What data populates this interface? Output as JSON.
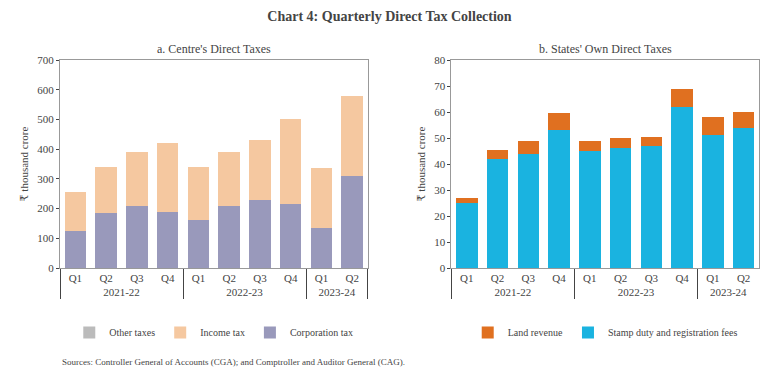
{
  "title": "Chart 4: Quarterly Direct Tax Collection",
  "source": "Sources: Controller General of Accounts (CGA); and Comptroller and Auditor General (CAG).",
  "chart_data": [
    {
      "type": "bar",
      "title": "a. Centre's Direct Taxes",
      "stacked": true,
      "categories": [
        "Q1",
        "Q2",
        "Q3",
        "Q4",
        "Q1",
        "Q2",
        "Q3",
        "Q4",
        "Q1",
        "Q2"
      ],
      "groups": [
        "2021-22",
        "2021-22",
        "2021-22",
        "2021-22",
        "2022-23",
        "2022-23",
        "2022-23",
        "2022-23",
        "2023-24",
        "2023-24"
      ],
      "series": [
        {
          "name": "Corporation tax",
          "color": "#9999bb",
          "values": [
            125,
            185,
            210,
            190,
            160,
            210,
            230,
            215,
            135,
            310
          ]
        },
        {
          "name": "Income tax",
          "color": "#f5c8a0",
          "values": [
            130,
            155,
            180,
            230,
            180,
            180,
            200,
            285,
            200,
            270
          ]
        },
        {
          "name": "Other taxes",
          "color": "#bbbbbb",
          "values": [
            0,
            0,
            0,
            0,
            0,
            0,
            0,
            0,
            0,
            0
          ]
        }
      ],
      "ylabel": "₹ thousand crore",
      "ylim": [
        0,
        700
      ],
      "yticks": [
        0,
        100,
        200,
        300,
        400,
        500,
        600,
        700
      ],
      "grid": false,
      "legend": "bottom"
    },
    {
      "type": "bar",
      "title": "b. States' Own Direct Taxes",
      "stacked": true,
      "categories": [
        "Q1",
        "Q2",
        "Q3",
        "Q4",
        "Q1",
        "Q2",
        "Q3",
        "Q4",
        "Q1",
        "Q2"
      ],
      "groups": [
        "2021-22",
        "2021-22",
        "2021-22",
        "2021-22",
        "2022-23",
        "2022-23",
        "2022-23",
        "2022-23",
        "2023-24",
        "2023-24"
      ],
      "series": [
        {
          "name": "Stamp duty and registration fees",
          "color": "#1ab3e0",
          "values": [
            25,
            42,
            44,
            53,
            45,
            46,
            47,
            62,
            51,
            54
          ]
        },
        {
          "name": "Land revenue",
          "color": "#e07020",
          "values": [
            2,
            3.5,
            5,
            6.5,
            4,
            4,
            3.5,
            7,
            7,
            6
          ]
        }
      ],
      "ylabel": "₹ thousand crore",
      "ylim": [
        0,
        80
      ],
      "yticks": [
        0,
        10,
        20,
        30,
        40,
        50,
        60,
        70,
        80
      ],
      "grid": false,
      "legend": "bottom"
    }
  ]
}
